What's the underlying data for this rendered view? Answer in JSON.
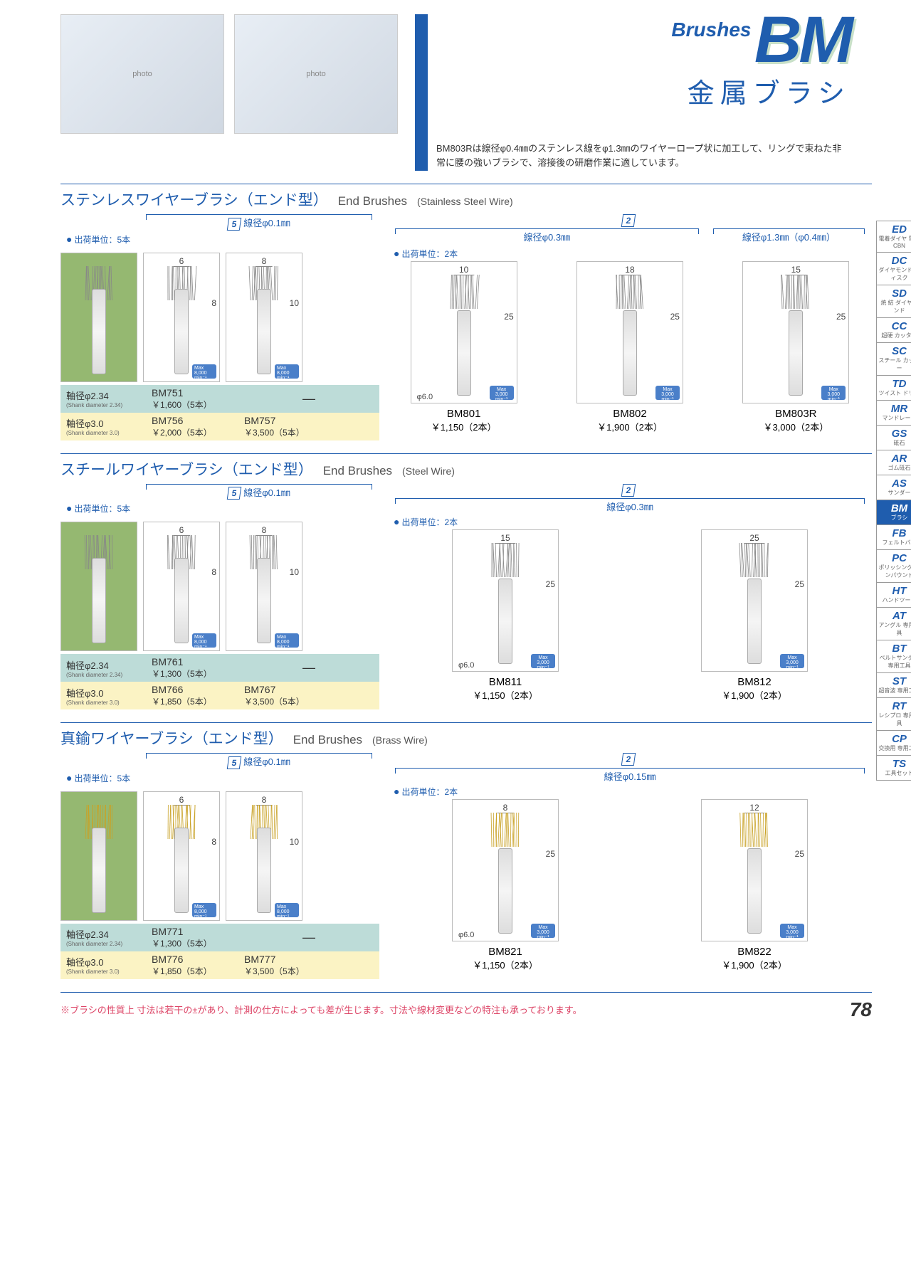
{
  "header": {
    "brushes": "Brushes",
    "bm": "BM",
    "jp_sub": "金属ブラシ",
    "intro": "BM803Rは線径φ0.4㎜のステンレス線をφ1.3㎜のワイヤーロープ状に加工して、リングで束ねた非常に腰の強いブラシで、溶接後の研磨作業に適しています。"
  },
  "sections": [
    {
      "jp": "ステンレスワイヤーブラシ（エンド型）",
      "en": "End Brushes",
      "sub": "(Stainless Steel Wire)",
      "left": {
        "qty": "5",
        "wire": "線径φ0.1㎜",
        "ship": "出荷単位：5本",
        "dims": [
          {
            "w": "6",
            "h": "8"
          },
          {
            "w": "8",
            "h": "10"
          }
        ],
        "rows": [
          {
            "cls": "row-teal",
            "shank": "軸径φ2.34",
            "sub": "(Shank diameter 2.34)",
            "c1": "BM751",
            "p1": "￥1,600（5本）",
            "c2": "—",
            "p2": ""
          },
          {
            "cls": "row-yellow",
            "shank": "軸径φ3.0",
            "sub": "(Shank diameter 3.0)",
            "c1": "BM756",
            "p1": "￥2,000（5本）",
            "c2": "BM757",
            "p2": "￥3,500（5本）"
          }
        ]
      },
      "right": {
        "qty": "2",
        "ship": "出荷単位：2本",
        "wires": [
          "線径φ0.3㎜",
          "線径φ1.3㎜（φ0.4㎜）"
        ],
        "items": [
          {
            "w": "10",
            "h": "25",
            "phi": "φ6.0",
            "code": "BM801",
            "price": "￥1,150（2本）"
          },
          {
            "w": "18",
            "h": "25",
            "code": "BM802",
            "price": "￥1,900（2本）"
          },
          {
            "w": "15",
            "h": "25",
            "code": "BM803R",
            "price": "￥3,000（2本）"
          }
        ]
      }
    },
    {
      "jp": "スチールワイヤーブラシ（エンド型）",
      "en": "End Brushes",
      "sub": "(Steel Wire)",
      "left": {
        "qty": "5",
        "wire": "線径φ0.1㎜",
        "ship": "出荷単位：5本",
        "dims": [
          {
            "w": "6",
            "h": "8"
          },
          {
            "w": "8",
            "h": "10"
          }
        ],
        "rows": [
          {
            "cls": "row-teal",
            "shank": "軸径φ2.34",
            "sub": "(Shank diameter 2.34)",
            "c1": "BM761",
            "p1": "￥1,300（5本）",
            "c2": "—",
            "p2": ""
          },
          {
            "cls": "row-yellow",
            "shank": "軸径φ3.0",
            "sub": "(Shank diameter 3.0)",
            "c1": "BM766",
            "p1": "￥1,850（5本）",
            "c2": "BM767",
            "p2": "￥3,500（5本）"
          }
        ]
      },
      "right": {
        "qty": "2",
        "ship": "出荷単位：2本",
        "wires": [
          "線径φ0.3㎜"
        ],
        "items": [
          {
            "w": "15",
            "h": "25",
            "phi": "φ6.0",
            "code": "BM811",
            "price": "￥1,150（2本）"
          },
          {
            "w": "25",
            "h": "25",
            "code": "BM812",
            "price": "￥1,900（2本）"
          }
        ]
      }
    },
    {
      "jp": "真鍮ワイヤーブラシ（エンド型）",
      "en": "End Brushes",
      "sub": "(Brass Wire)",
      "left": {
        "qty": "5",
        "wire": "線径φ0.1㎜",
        "ship": "出荷単位：5本",
        "dims": [
          {
            "w": "6",
            "h": "8"
          },
          {
            "w": "8",
            "h": "10"
          }
        ],
        "rows": [
          {
            "cls": "row-teal",
            "shank": "軸径φ2.34",
            "sub": "(Shank diameter 2.34)",
            "c1": "BM771",
            "p1": "￥1,300（5本）",
            "c2": "—",
            "p2": ""
          },
          {
            "cls": "row-yellow",
            "shank": "軸径φ3.0",
            "sub": "(Shank diameter 3.0)",
            "c1": "BM776",
            "p1": "￥1,850（5本）",
            "c2": "BM777",
            "p2": "￥3,500（5本）"
          }
        ]
      },
      "right": {
        "qty": "2",
        "ship": "出荷単位：2本",
        "wires": [
          "線径φ0.15㎜"
        ],
        "items": [
          {
            "w": "8",
            "h": "25",
            "phi": "φ6.0",
            "code": "BM821",
            "price": "￥1,150（2本）"
          },
          {
            "w": "12",
            "h": "25",
            "code": "BM822",
            "price": "￥1,900（2本）"
          }
        ]
      }
    }
  ],
  "rpm": {
    "left": "Max 8,000 min⁻¹",
    "right": "Max 3,000 min⁻¹"
  },
  "tabs": [
    {
      "c": "ED",
      "l": "電着ダイヤ 電着CBN"
    },
    {
      "c": "DC",
      "l": "ダイヤモンド ディスク"
    },
    {
      "c": "SD",
      "l": "焼 結 ダイヤモンド"
    },
    {
      "c": "CC",
      "l": "超硬 カッター"
    },
    {
      "c": "SC",
      "l": "スチール カッター"
    },
    {
      "c": "TD",
      "l": "ツイスト ドリル"
    },
    {
      "c": "MR",
      "l": "マンドレール"
    },
    {
      "c": "GS",
      "l": "砥石"
    },
    {
      "c": "AR",
      "l": "ゴム砥石"
    },
    {
      "c": "AS",
      "l": "サンダー"
    },
    {
      "c": "BM",
      "l": "ブラシ",
      "active": true
    },
    {
      "c": "FB",
      "l": "フェルトバフ"
    },
    {
      "c": "PC",
      "l": "ポリッシング コンパウンド"
    },
    {
      "c": "HT",
      "l": "ハンドツール"
    },
    {
      "c": "AT",
      "l": "アングル 専用工具"
    },
    {
      "c": "BT",
      "l": "ベルトサンダー 専用工具"
    },
    {
      "c": "ST",
      "l": "超音波 専用工具"
    },
    {
      "c": "RT",
      "l": "レシプロ 専用工具"
    },
    {
      "c": "CP",
      "l": "交換用 専用工具"
    },
    {
      "c": "TS",
      "l": "工具セット"
    }
  ],
  "footer": {
    "note": "※ブラシの性質上 寸法は若干の±があり、計測の仕方によっても差が生じます。寸法や線材変更などの特注も承っております。",
    "page": "78"
  },
  "colors": {
    "blue": "#1f5dae",
    "green": "#95b871",
    "teal": "#bddcd8",
    "yellow": "#fbf3c4",
    "brass": "#c9a227",
    "steel": "#888"
  }
}
